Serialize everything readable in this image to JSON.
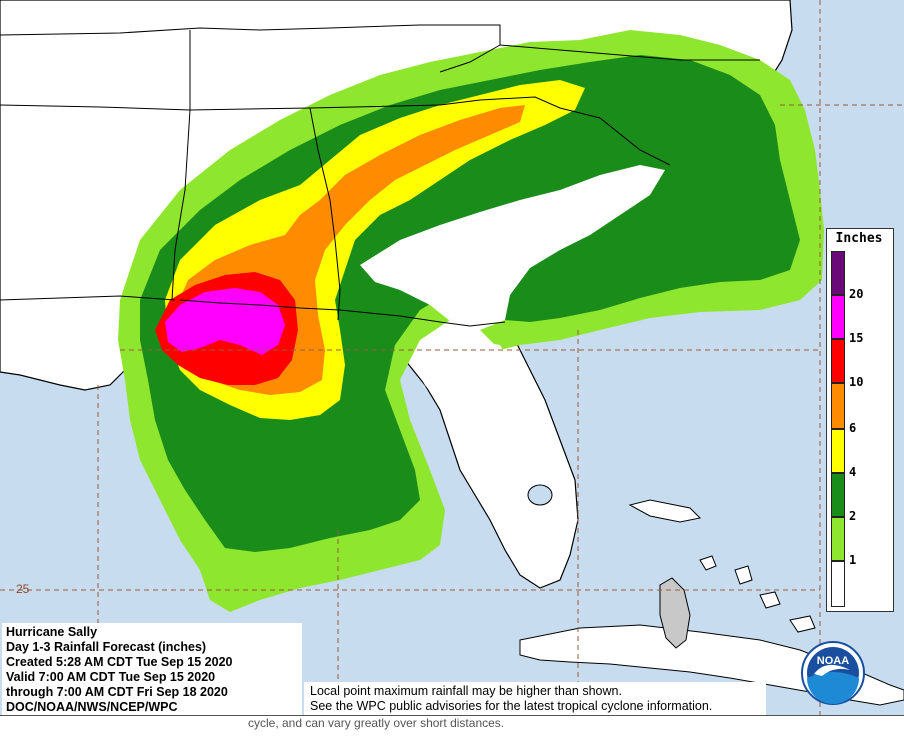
{
  "map": {
    "ocean_color": "#c8dcf0",
    "land_color": "#ffffff",
    "grid_color": "#9a5a3a",
    "latitude_label": "25"
  },
  "legend": {
    "title": "Inches",
    "items": [
      {
        "label": "20",
        "color": "#6a0a78"
      },
      {
        "label": "15",
        "color": "#ff00ff"
      },
      {
        "label": "10",
        "color": "#ff0000"
      },
      {
        "label": "6",
        "color": "#ff8c00"
      },
      {
        "label": "4",
        "color": "#ffff00"
      },
      {
        "label": "2",
        "color": "#1a8c1a"
      },
      {
        "label": "1",
        "color": "#8ee62e"
      },
      {
        "label": "",
        "color": "#ffffff"
      }
    ]
  },
  "info": {
    "lines": [
      "Hurricane Sally",
      "Day 1-3 Rainfall Forecast (inches)",
      "Created 5:28 AM CDT Tue Sep 15 2020",
      "Valid 7:00 AM CDT Tue Sep 15 2020",
      "through 7:00 AM CDT Fri Sep 18 2020",
      "DOC/NOAA/NWS/NCEP/WPC"
    ]
  },
  "disclaimer": {
    "line1": "Local point maximum rainfall may be higher than shown.",
    "line2": "See the WPC public advisories for the latest tropical cyclone information."
  },
  "bottom_note": "cycle, and can vary greatly over short distances.",
  "logo": {
    "text": "NOAA",
    "colors": {
      "outer": "#ffffff",
      "sky": "#1a4fa0",
      "sea": "#1e8ad6",
      "bird": "#ffffff"
    }
  }
}
